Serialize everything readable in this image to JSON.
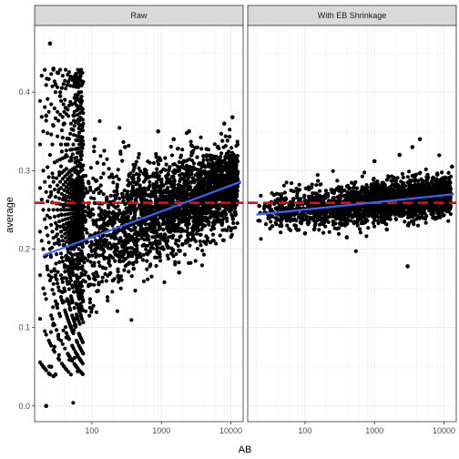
{
  "chart_data": {
    "type": "scatter",
    "xlabel": "AB",
    "ylabel": "average",
    "x_scale": "log10",
    "xlim": [
      15,
      15000
    ],
    "ylim": [
      -0.02,
      0.485
    ],
    "x_ticks": [
      100,
      1000,
      10000
    ],
    "x_tick_labels": [
      "100",
      "1000",
      "10000"
    ],
    "y_ticks": [
      0.0,
      0.1,
      0.2,
      0.3,
      0.4
    ],
    "y_tick_labels": [
      "0.0",
      "0.1",
      "0.2",
      "0.3",
      "0.4"
    ],
    "grid": true,
    "reference_line": {
      "y": 0.259,
      "style": "dashed",
      "color": "#ff0000"
    },
    "colors": {
      "points": "#000000",
      "trend": "#3366ff",
      "reference": "#ff0000",
      "strip_bg": "#d9d9d9",
      "strip_border": "#333333",
      "grid": "#ebebeb"
    },
    "panels": [
      {
        "title": "Raw",
        "trend": {
          "x": [
            20,
            14000
          ],
          "y": [
            0.192,
            0.286
          ]
        },
        "highlight_points": [
          {
            "x": 22,
            "y": 0.0
          },
          {
            "x": 25,
            "y": 0.462
          },
          {
            "x": 28,
            "y": 0.43
          },
          {
            "x": 32,
            "y": 0.425
          },
          {
            "x": 30,
            "y": 0.41
          },
          {
            "x": 22,
            "y": 0.37
          },
          {
            "x": 26,
            "y": 0.05
          },
          {
            "x": 30,
            "y": 0.04
          },
          {
            "x": 20,
            "y": 0.05
          },
          {
            "x": 28,
            "y": 0.038
          },
          {
            "x": 35,
            "y": 0.395
          },
          {
            "x": 42,
            "y": 0.38
          },
          {
            "x": 40,
            "y": 0.36
          },
          {
            "x": 55,
            "y": 0.37
          },
          {
            "x": 70,
            "y": 0.34
          },
          {
            "x": 110,
            "y": 0.34
          },
          {
            "x": 300,
            "y": 0.33
          },
          {
            "x": 1500,
            "y": 0.34
          },
          {
            "x": 2500,
            "y": 0.35
          },
          {
            "x": 10500,
            "y": 0.368
          },
          {
            "x": 900,
            "y": 0.35
          },
          {
            "x": 1800,
            "y": 0.17
          },
          {
            "x": 400,
            "y": 0.175
          },
          {
            "x": 8000,
            "y": 0.36
          }
        ],
        "body_points": [
          {
            "x": 22,
            "y": 0.192
          },
          {
            "x": 40,
            "y": 0.205
          },
          {
            "x": 70,
            "y": 0.215
          },
          {
            "x": 150,
            "y": 0.225
          },
          {
            "x": 400,
            "y": 0.24
          },
          {
            "x": 1000,
            "y": 0.253
          },
          {
            "x": 3000,
            "y": 0.266
          },
          {
            "x": 8000,
            "y": 0.278
          },
          {
            "x": 13000,
            "y": 0.285
          },
          {
            "x": 50,
            "y": 0.3
          },
          {
            "x": 60,
            "y": 0.13
          },
          {
            "x": 120,
            "y": 0.31
          },
          {
            "x": 200,
            "y": 0.16
          },
          {
            "x": 600,
            "y": 0.3
          },
          {
            "x": 500,
            "y": 0.19
          },
          {
            "x": 2000,
            "y": 0.31
          },
          {
            "x": 5000,
            "y": 0.24
          },
          {
            "x": 11000,
            "y": 0.32
          }
        ]
      },
      {
        "title": "With EB Shrinkage",
        "trend": {
          "x": [
            20,
            14000
          ],
          "y": [
            0.244,
            0.27
          ]
        },
        "highlight_points": [
          {
            "x": 3000,
            "y": 0.178
          },
          {
            "x": 4500,
            "y": 0.34
          },
          {
            "x": 3500,
            "y": 0.33
          },
          {
            "x": 1000,
            "y": 0.312
          },
          {
            "x": 2300,
            "y": 0.32
          },
          {
            "x": 13000,
            "y": 0.305
          }
        ],
        "body_points": [
          {
            "x": 22,
            "y": 0.255
          },
          {
            "x": 50,
            "y": 0.25
          },
          {
            "x": 120,
            "y": 0.25
          },
          {
            "x": 300,
            "y": 0.252
          },
          {
            "x": 800,
            "y": 0.257
          },
          {
            "x": 2000,
            "y": 0.263
          },
          {
            "x": 6000,
            "y": 0.27
          },
          {
            "x": 12000,
            "y": 0.275
          },
          {
            "x": 100,
            "y": 0.22
          },
          {
            "x": 400,
            "y": 0.215
          },
          {
            "x": 1500,
            "y": 0.225
          },
          {
            "x": 8000,
            "y": 0.295
          }
        ]
      }
    ]
  }
}
